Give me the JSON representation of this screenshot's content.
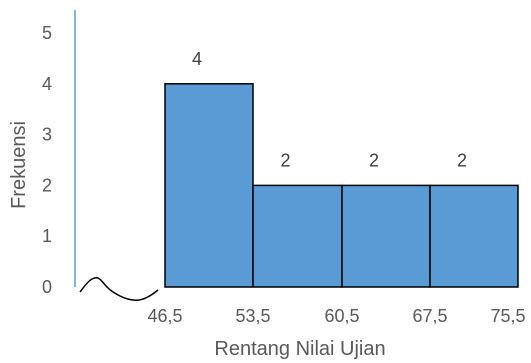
{
  "chart_data": {
    "type": "bar",
    "categories": [
      "46,5 - 53,5",
      "53,5 - 60,5",
      "60,5 - 67,5",
      "67,5 - 75,5"
    ],
    "bin_edges": [
      "46,5",
      "53,5",
      "60,5",
      "67,5",
      "75,5"
    ],
    "values": [
      4,
      2,
      2,
      2
    ],
    "data_labels": [
      "4",
      "2",
      "2",
      "2"
    ],
    "xlabel": "Rentang Nilai Ujian",
    "ylabel": "Frekuensi",
    "ylim": [
      0,
      5
    ],
    "y_ticks": [
      "0",
      "1",
      "2",
      "3",
      "4",
      "5"
    ],
    "grid": false,
    "axis_break": true,
    "colors": {
      "bar_fill": "#5B9BD5",
      "bar_stroke": "#000000",
      "y_axis_line": "#5B9BD5",
      "x_axis_line": "#000000",
      "text": "#595959"
    }
  }
}
